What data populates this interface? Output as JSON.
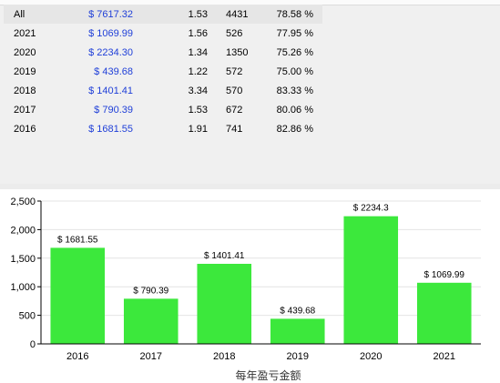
{
  "table": {
    "rows": [
      {
        "year": "All",
        "amount": "$ 7617.32",
        "ratio": "1.53",
        "count": "4431",
        "pct": "78.58 %"
      },
      {
        "year": "2021",
        "amount": "$ 1069.99",
        "ratio": "1.56",
        "count": "526",
        "pct": "77.95 %"
      },
      {
        "year": "2020",
        "amount": "$ 2234.30",
        "ratio": "1.34",
        "count": "1350",
        "pct": "75.26 %"
      },
      {
        "year": "2019",
        "amount": "$ 439.68",
        "ratio": "1.22",
        "count": "572",
        "pct": "75.00 %"
      },
      {
        "year": "2018",
        "amount": "$ 1401.41",
        "ratio": "3.34",
        "count": "570",
        "pct": "83.33 %"
      },
      {
        "year": "2017",
        "amount": "$ 790.39",
        "ratio": "1.53",
        "count": "672",
        "pct": "80.06 %"
      },
      {
        "year": "2016",
        "amount": "$ 1681.55",
        "ratio": "1.91",
        "count": "741",
        "pct": "82.86 %"
      }
    ]
  },
  "chart_data": {
    "type": "bar",
    "categories": [
      "2016",
      "2017",
      "2018",
      "2019",
      "2020",
      "2021"
    ],
    "values": [
      1681.55,
      790.39,
      1401.41,
      439.68,
      2234.3,
      1069.99
    ],
    "data_labels": [
      "$ 1681.55",
      "$ 790.39",
      "$ 1401.41",
      "$ 439.68",
      "$ 2234.3",
      "$ 1069.99"
    ],
    "yticks": [
      0,
      500,
      1000,
      1500,
      2000,
      2500
    ],
    "ytick_labels": [
      "0",
      "500",
      "1,000",
      "1,500",
      "2,000",
      "2,500"
    ],
    "ylim": [
      0,
      2500
    ],
    "xlabel": "每年盈亏金额",
    "ylabel": "",
    "title": "",
    "grid": true,
    "bar_color": "#3ce83c",
    "grid_color": "#e4e4e4",
    "axis_color": "#000000"
  }
}
